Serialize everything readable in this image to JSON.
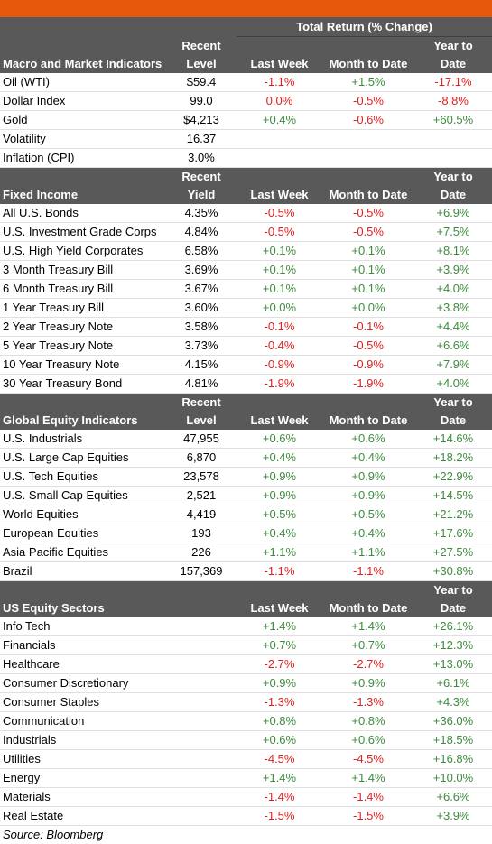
{
  "header": {
    "total_return": "Total Return (% Change)"
  },
  "sections": [
    {
      "title": "Macro and Market Indicators",
      "level_col": [
        "Recent",
        "Level"
      ],
      "cols": [
        "Last Week",
        "Month to Date",
        [
          "Year to",
          "Date"
        ]
      ],
      "rows": [
        [
          "Oil (WTI)",
          "$59.4",
          "-1.1%",
          "+1.5%",
          "-17.1%"
        ],
        [
          "Dollar Index",
          "99.0",
          "0.0%",
          "-0.5%",
          "-8.8%"
        ],
        [
          "Gold",
          "$4,213",
          "+0.4%",
          "-0.6%",
          "+60.5%"
        ],
        [
          "Volatility",
          "16.37",
          "",
          "",
          ""
        ],
        [
          "Inflation (CPI)",
          "3.0%",
          "",
          "",
          ""
        ]
      ]
    },
    {
      "title": "Fixed Income",
      "level_col": [
        "Recent",
        "Yield"
      ],
      "cols": [
        "Last Week",
        "Month to Date",
        [
          "Year to",
          "Date"
        ]
      ],
      "rows": [
        [
          "All U.S. Bonds",
          "4.35%",
          "-0.5%",
          "-0.5%",
          "+6.9%"
        ],
        [
          "U.S. Investment Grade Corps",
          "4.84%",
          "-0.5%",
          "-0.5%",
          "+7.5%"
        ],
        [
          "U.S. High Yield Corporates",
          "6.58%",
          "+0.1%",
          "+0.1%",
          "+8.1%"
        ],
        [
          "3 Month Treasury Bill",
          "3.69%",
          "+0.1%",
          "+0.1%",
          "+3.9%"
        ],
        [
          "6 Month Treasury Bill",
          "3.67%",
          "+0.1%",
          "+0.1%",
          "+4.0%"
        ],
        [
          "1 Year Treasury Bill",
          "3.60%",
          "+0.0%",
          "+0.0%",
          "+3.8%"
        ],
        [
          "2 Year Treasury Note",
          "3.58%",
          "-0.1%",
          "-0.1%",
          "+4.4%"
        ],
        [
          "5 Year Treasury Note",
          "3.73%",
          "-0.4%",
          "-0.5%",
          "+6.6%"
        ],
        [
          "10 Year Treasury Note",
          "4.15%",
          "-0.9%",
          "-0.9%",
          "+7.9%"
        ],
        [
          "30 Year Treasury Bond",
          "4.81%",
          "-1.9%",
          "-1.9%",
          "+4.0%"
        ]
      ]
    },
    {
      "title": "Global Equity Indicators",
      "level_col": [
        "Recent",
        "Level"
      ],
      "cols": [
        "Last Week",
        "Month to Date",
        [
          "Year to",
          "Date"
        ]
      ],
      "rows": [
        [
          "U.S. Industrials",
          "47,955",
          "+0.6%",
          "+0.6%",
          "+14.6%"
        ],
        [
          "U.S. Large Cap Equities",
          "6,870",
          "+0.4%",
          "+0.4%",
          "+18.2%"
        ],
        [
          "U.S. Tech Equities",
          "23,578",
          "+0.9%",
          "+0.9%",
          "+22.9%"
        ],
        [
          "U.S. Small Cap Equities",
          "2,521",
          "+0.9%",
          "+0.9%",
          "+14.5%"
        ],
        [
          "World Equities",
          "4,419",
          "+0.5%",
          "+0.5%",
          "+21.2%"
        ],
        [
          "European Equities",
          "193",
          "+0.4%",
          "+0.4%",
          "+17.6%"
        ],
        [
          "Asia Pacific Equities",
          "226",
          "+1.1%",
          "+1.1%",
          "+27.5%"
        ],
        [
          "Brazil",
          "157,369",
          "-1.1%",
          "-1.1%",
          "+30.8%"
        ]
      ]
    },
    {
      "title": "US Equity Sectors",
      "level_col": [
        "",
        ""
      ],
      "cols": [
        "Last Week",
        "Month to Date",
        [
          "Year to",
          "Date"
        ]
      ],
      "rows": [
        [
          "Info Tech",
          "",
          "+1.4%",
          "+1.4%",
          "+26.1%"
        ],
        [
          "Financials",
          "",
          "+0.7%",
          "+0.7%",
          "+12.3%"
        ],
        [
          "Healthcare",
          "",
          "-2.7%",
          "-2.7%",
          "+13.0%"
        ],
        [
          "Consumer Discretionary",
          "",
          "+0.9%",
          "+0.9%",
          "+6.1%"
        ],
        [
          "Consumer Staples",
          "",
          "-1.3%",
          "-1.3%",
          "+4.3%"
        ],
        [
          "Communication",
          "",
          "+0.8%",
          "+0.8%",
          "+36.0%"
        ],
        [
          "Industrials",
          "",
          "+0.6%",
          "+0.6%",
          "+18.5%"
        ],
        [
          "Utilities",
          "",
          "-4.5%",
          "-4.5%",
          "+16.8%"
        ],
        [
          "Energy",
          "",
          "+1.4%",
          "+1.4%",
          "+10.0%"
        ],
        [
          "Materials",
          "",
          "-1.4%",
          "-1.4%",
          "+6.6%"
        ],
        [
          "Real Estate",
          "",
          "-1.5%",
          "-1.5%",
          "+3.9%"
        ]
      ]
    }
  ],
  "source": "Source: Bloomberg",
  "colors": {
    "accent_bar": "#e8580c",
    "header_bg": "#595959",
    "positive": "#3d8b3d",
    "negative": "#e02020"
  }
}
